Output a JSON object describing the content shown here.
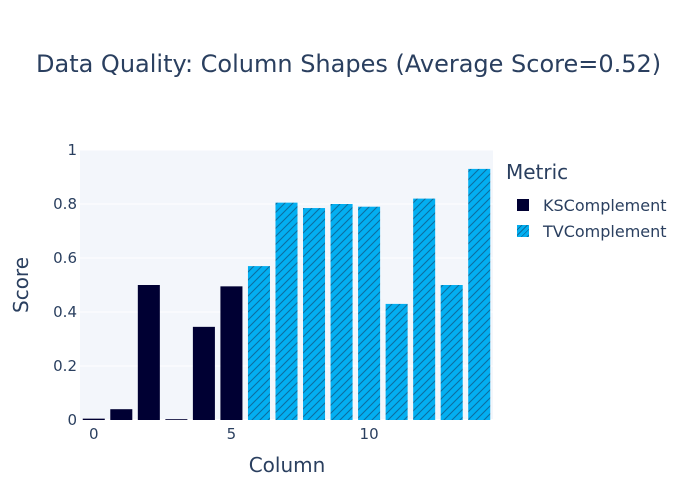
{
  "chart_data": {
    "type": "bar",
    "title": "Data Quality: Column Shapes (Average Score=0.52)",
    "xlabel": "Column",
    "ylabel": "Score",
    "xlim": [
      -0.5,
      14.5
    ],
    "ylim": [
      0,
      1
    ],
    "x_ticks": [
      "0",
      "5",
      "10"
    ],
    "y_ticks": [
      "0",
      "0.2",
      "0.4",
      "0.6",
      "0.8",
      "1"
    ],
    "grid": true,
    "legend": {
      "title": "Metric",
      "position": "right"
    },
    "series": [
      {
        "name": "KSComplement",
        "color": "#000033",
        "pattern": "solid",
        "x": [
          0,
          1,
          2,
          3,
          4,
          5
        ],
        "values": [
          0.005,
          0.04,
          0.5,
          0.003,
          0.345,
          0.495
        ]
      },
      {
        "name": "TVComplement",
        "color": "#03AFF1",
        "pattern": "diagonal-hatch",
        "x": [
          6,
          7,
          8,
          9,
          10,
          11,
          12,
          13,
          14
        ],
        "values": [
          0.57,
          0.805,
          0.785,
          0.8,
          0.79,
          0.43,
          0.82,
          0.5,
          0.93
        ]
      }
    ]
  }
}
